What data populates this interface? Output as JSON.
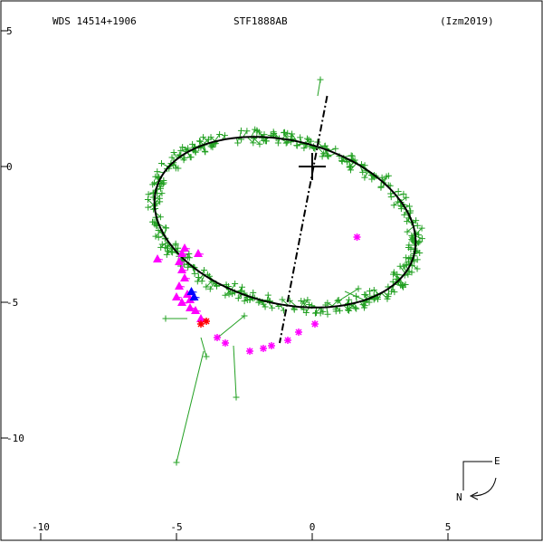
{
  "header": {
    "wds": "WDS 14514+1906",
    "pair": "STF1888AB",
    "ref": "(Izm2019)"
  },
  "compass": {
    "east": "E",
    "north": "N"
  },
  "chart_data": {
    "type": "scatter",
    "title": "",
    "xlabel": "",
    "ylabel": "",
    "xlim": [
      -11,
      8
    ],
    "ylim": [
      -13.5,
      5
    ],
    "x_ticks": [
      -10,
      -5,
      0,
      5
    ],
    "x_tick_labels": [
      "-10",
      "-5",
      "0",
      "5"
    ],
    "y_ticks": [
      5,
      0,
      -5,
      -10
    ],
    "y_tick_labels": [
      "5",
      "0",
      "-5",
      "-10"
    ],
    "grid": false,
    "primary_star": [
      0,
      0
    ],
    "orbit": {
      "center": [
        -1.0,
        -2.05
      ],
      "semi_axis_1": 4.9,
      "semi_axis_2": 3.0,
      "tilt_deg": 76,
      "color": "#000000"
    },
    "line_of_apsides": [
      [
        0.55,
        2.6
      ],
      [
        -1.2,
        -6.5
      ]
    ],
    "series": [
      {
        "marker": "plus",
        "color": "#22a022",
        "outliers": [
          {
            "obs": [
              -5.0,
              -10.9
            ],
            "calc": [
              -4.0,
              -6.8
            ]
          },
          {
            "obs": [
              -2.8,
              -8.5
            ],
            "calc": [
              -2.9,
              -6.6
            ]
          },
          {
            "obs": [
              -5.4,
              -5.6
            ],
            "calc": [
              -4.6,
              -5.6
            ]
          },
          {
            "obs": [
              -2.5,
              -5.5
            ],
            "calc": [
              -3.6,
              -6.4
            ]
          },
          {
            "obs": [
              1.7,
              -4.5
            ],
            "calc": [
              1.05,
              -4.9
            ]
          },
          {
            "obs": [
              2.1,
              -5.0
            ],
            "calc": [
              1.2,
              -4.6
            ]
          },
          {
            "obs": [
              0.3,
              3.2
            ],
            "calc": [
              0.2,
              2.6
            ]
          },
          {
            "obs": [
              -3.9,
              -7.0
            ],
            "calc": [
              -4.1,
              -6.3
            ]
          }
        ]
      },
      {
        "marker": "triangle",
        "color": "#ff00ff",
        "points": [
          [
            -5.7,
            -3.4
          ],
          [
            -4.7,
            -3.0
          ],
          [
            -4.8,
            -3.2
          ],
          [
            -4.9,
            -3.5
          ],
          [
            -4.8,
            -3.8
          ],
          [
            -4.7,
            -4.1
          ],
          [
            -4.9,
            -4.4
          ],
          [
            -4.6,
            -4.7
          ],
          [
            -5.0,
            -4.8
          ],
          [
            -4.8,
            -5.0
          ],
          [
            -4.5,
            -4.9
          ],
          [
            -4.3,
            -5.3
          ],
          [
            -4.5,
            -5.2
          ],
          [
            -4.1,
            -5.6
          ],
          [
            -4.2,
            -3.2
          ]
        ]
      },
      {
        "marker": "star",
        "color": "#ff00ff",
        "points": [
          [
            1.65,
            -2.6
          ],
          [
            -2.3,
            -6.8
          ],
          [
            -1.8,
            -6.7
          ],
          [
            -1.5,
            -6.6
          ],
          [
            -0.9,
            -6.4
          ],
          [
            -0.5,
            -6.1
          ],
          [
            0.1,
            -5.8
          ],
          [
            -3.2,
            -6.5
          ],
          [
            -3.5,
            -6.3
          ]
        ]
      },
      {
        "marker": "triangle",
        "color": "#0000ff",
        "points": [
          [
            -4.35,
            -4.8
          ],
          [
            -4.45,
            -4.6
          ]
        ]
      },
      {
        "marker": "star",
        "color": "#ff0000",
        "points": [
          [
            -4.1,
            -5.8
          ],
          [
            -3.9,
            -5.7
          ]
        ]
      }
    ]
  }
}
